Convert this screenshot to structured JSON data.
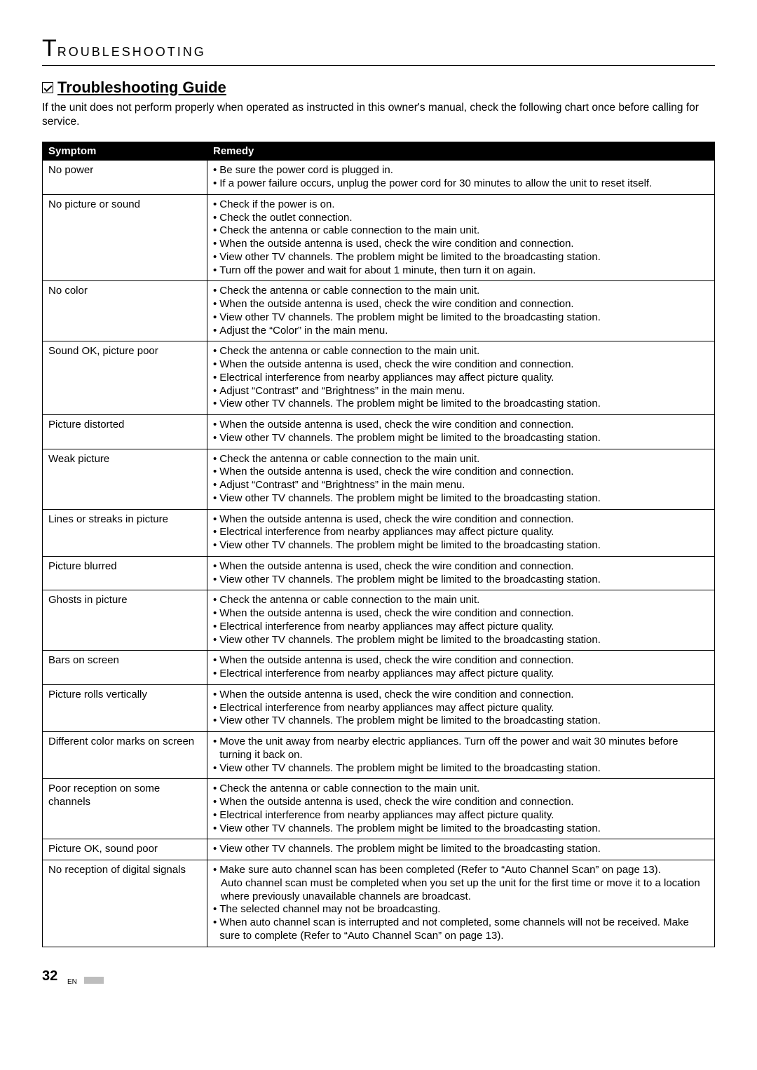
{
  "section_header": {
    "big": "T",
    "rest": "ROUBLESHOOTING"
  },
  "guide_title": "Troubleshooting Guide",
  "intro": "If the unit does not perform properly when operated as instructed in this owner's manual, check the following chart once before calling for service.",
  "columns": {
    "symptom": "Symptom",
    "remedy": "Remedy"
  },
  "rows": [
    {
      "symptom": "No power",
      "remedies": [
        {
          "text": "Be sure the power cord is plugged in."
        },
        {
          "text": "If a power failure occurs, unplug the power cord for 30 minutes to allow the unit to reset itself."
        }
      ]
    },
    {
      "symptom": "No picture or sound",
      "remedies": [
        {
          "text": "Check if the power is on."
        },
        {
          "text": "Check the outlet connection."
        },
        {
          "text": "Check the antenna or cable connection to the main unit."
        },
        {
          "text": "When the outside antenna is used, check the wire condition and connection."
        },
        {
          "text": "View other TV channels. The problem might be limited to the broadcasting station."
        },
        {
          "text": "Turn off the power and wait for about 1 minute, then turn it on again."
        }
      ]
    },
    {
      "symptom": "No color",
      "remedies": [
        {
          "text": "Check the antenna or cable connection to the main unit."
        },
        {
          "text": "When the outside antenna is used, check the wire condition and connection."
        },
        {
          "text": "View other TV channels. The problem might be limited to the broadcasting station."
        },
        {
          "text": "Adjust the “Color” in the main menu."
        }
      ]
    },
    {
      "symptom": "Sound OK, picture poor",
      "remedies": [
        {
          "text": "Check the antenna or cable connection to the main unit."
        },
        {
          "text": "When the outside antenna is used, check the wire condition and connection."
        },
        {
          "text": "Electrical interference from nearby appliances may affect picture quality."
        },
        {
          "text": "Adjust “Contrast” and “Brightness” in the main menu."
        },
        {
          "text": "View other TV channels. The problem might be limited to the broadcasting station."
        }
      ]
    },
    {
      "symptom": "Picture distorted",
      "remedies": [
        {
          "text": "When the outside antenna is used, check the wire condition and connection."
        },
        {
          "text": "View other TV channels. The problem might be limited to the broadcasting station."
        }
      ]
    },
    {
      "symptom": "Weak picture",
      "remedies": [
        {
          "text": "Check the antenna or cable connection to the main unit."
        },
        {
          "text": "When the outside antenna is used, check the wire condition and connection."
        },
        {
          "text": "Adjust “Contrast” and “Brightness” in the main menu."
        },
        {
          "text": "View other TV channels. The problem might be limited to the broadcasting station."
        }
      ]
    },
    {
      "symptom": "Lines or streaks in picture",
      "remedies": [
        {
          "text": "When the outside antenna is used, check the wire condition and connection."
        },
        {
          "text": "Electrical interference from nearby appliances may affect picture quality."
        },
        {
          "text": "View other TV channels. The problem might be limited to the broadcasting station."
        }
      ]
    },
    {
      "symptom": "Picture blurred",
      "remedies": [
        {
          "text": "When the outside antenna is used, check the wire condition and connection."
        },
        {
          "text": "View other TV channels. The problem might be limited to the broadcasting station."
        }
      ]
    },
    {
      "symptom": "Ghosts in picture",
      "remedies": [
        {
          "text": "Check the antenna or cable connection to the main unit."
        },
        {
          "text": "When the outside antenna is used, check the wire condition and connection."
        },
        {
          "text": "Electrical interference from nearby appliances may affect picture quality."
        },
        {
          "text": "View other TV channels. The problem might be limited to the broadcasting station."
        }
      ]
    },
    {
      "symptom": "Bars on screen",
      "remedies": [
        {
          "text": "When the outside antenna is used, check the wire condition and connection."
        },
        {
          "text": "Electrical interference from nearby appliances may affect picture quality."
        }
      ]
    },
    {
      "symptom": "Picture rolls vertically",
      "remedies": [
        {
          "text": "When the outside antenna is used, check the wire condition and connection."
        },
        {
          "text": "Electrical interference from nearby appliances may affect picture quality."
        },
        {
          "text": "View other TV channels. The problem might be limited to the broadcasting station."
        }
      ]
    },
    {
      "symptom": "Different color marks on screen",
      "remedies": [
        {
          "text": "Move the unit away from nearby electric appliances. Turn off the power and wait 30 minutes before turning it back on."
        },
        {
          "text": "View other TV channels. The problem might be limited to the broadcasting station."
        }
      ]
    },
    {
      "symptom": "Poor reception on some channels",
      "remedies": [
        {
          "text": "Check the antenna or cable connection to the main unit."
        },
        {
          "text": "When the outside antenna is used, check the wire condition and connection."
        },
        {
          "text": "Electrical interference from nearby appliances may affect picture quality."
        },
        {
          "text": "View other TV channels. The problem might be limited to the broadcasting station."
        }
      ]
    },
    {
      "symptom": "Picture OK, sound poor",
      "remedies": [
        {
          "text": "View other TV channels. The problem might be limited to the broadcasting station."
        }
      ]
    },
    {
      "symptom": "No reception of digital signals",
      "remedies": [
        {
          "text": "Make sure auto channel scan has been completed (Refer to “Auto Channel Scan” on page 13).",
          "sub": "Auto channel scan must be completed when you set up the unit for the first time or move it to a location where previously unavailable channels are broadcast."
        },
        {
          "text": "The selected channel may not be broadcasting."
        },
        {
          "text": "When auto channel scan is interrupted and not completed, some channels will not be received. Make sure to complete (Refer to “Auto Channel Scan” on page 13)."
        }
      ]
    }
  ],
  "page_number": "32",
  "page_lang": "EN"
}
